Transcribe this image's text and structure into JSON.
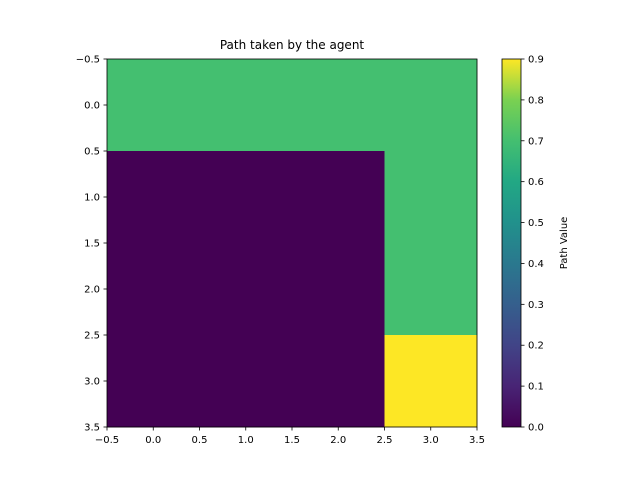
{
  "chart_data": {
    "type": "heatmap",
    "title": "Path taken by the agent",
    "xlabel": "",
    "ylabel": "",
    "rows": 4,
    "cols": 4,
    "x_range": [
      -0.5,
      3.5
    ],
    "y_range": [
      -0.5,
      3.5
    ],
    "y_inverted": true,
    "grid": false,
    "colormap": "viridis",
    "values": [
      [
        0.7,
        0.7,
        0.7,
        0.7
      ],
      [
        0.0,
        0.0,
        0.0,
        0.7
      ],
      [
        0.0,
        0.0,
        0.0,
        0.7
      ],
      [
        0.0,
        0.0,
        0.0,
        0.9
      ]
    ],
    "x_ticks": [
      "−0.5",
      "0.0",
      "0.5",
      "1.0",
      "1.5",
      "2.0",
      "2.5",
      "3.0",
      "3.5"
    ],
    "y_ticks": [
      "−0.5",
      "0.0",
      "0.5",
      "1.0",
      "1.5",
      "2.0",
      "2.5",
      "3.0",
      "3.5"
    ],
    "colorbar": {
      "label": "Path Value",
      "range": [
        0.0,
        0.9
      ],
      "ticks": [
        "0.0",
        "0.1",
        "0.2",
        "0.3",
        "0.4",
        "0.5",
        "0.6",
        "0.7",
        "0.8",
        "0.9"
      ]
    }
  }
}
